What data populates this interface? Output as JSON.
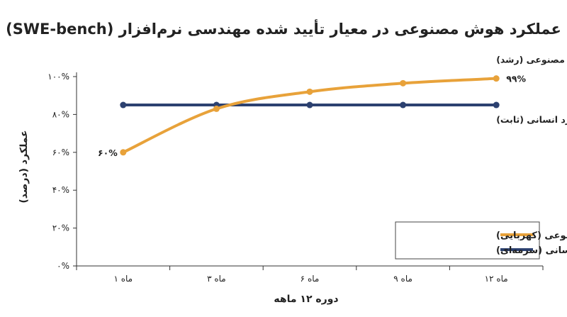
{
  "chart_data": {
    "type": "line",
    "title": "عملکرد هوش مصنوعی در معیار تأیید شده مهندسی نرم‌افزار (SWE-bench)",
    "xlabel": "دوره ۱۲ ماهه",
    "ylabel": "عملکرد (درصد)",
    "categories": [
      "ماه ۱",
      "ماه ۳",
      "ماه ۶",
      "ماه ۹",
      "ماه ۱۲"
    ],
    "yticks": [
      "۰%",
      "۲۰%",
      "۴۰%",
      "۶۰%",
      "۸۰%",
      "۱۰۰%"
    ],
    "ylim": [
      0,
      100
    ],
    "series": [
      {
        "name": "هوش مصنوعی (کهربایی)",
        "line_label": "عملکرد هوش مصنوعی (رشد)",
        "color": "#E8A23A",
        "values": [
          60,
          83,
          92,
          96.5,
          99
        ],
        "start_label": "۶۰%",
        "end_label": "۹۹%"
      },
      {
        "name": "انسانی (سرمه‌ای)",
        "line_label": "عملکرد انسانی (ثابت)",
        "color": "#2C4170",
        "values": [
          85,
          85,
          85,
          85,
          85
        ]
      }
    ],
    "grid": false,
    "legend_position": "bottom-right"
  }
}
